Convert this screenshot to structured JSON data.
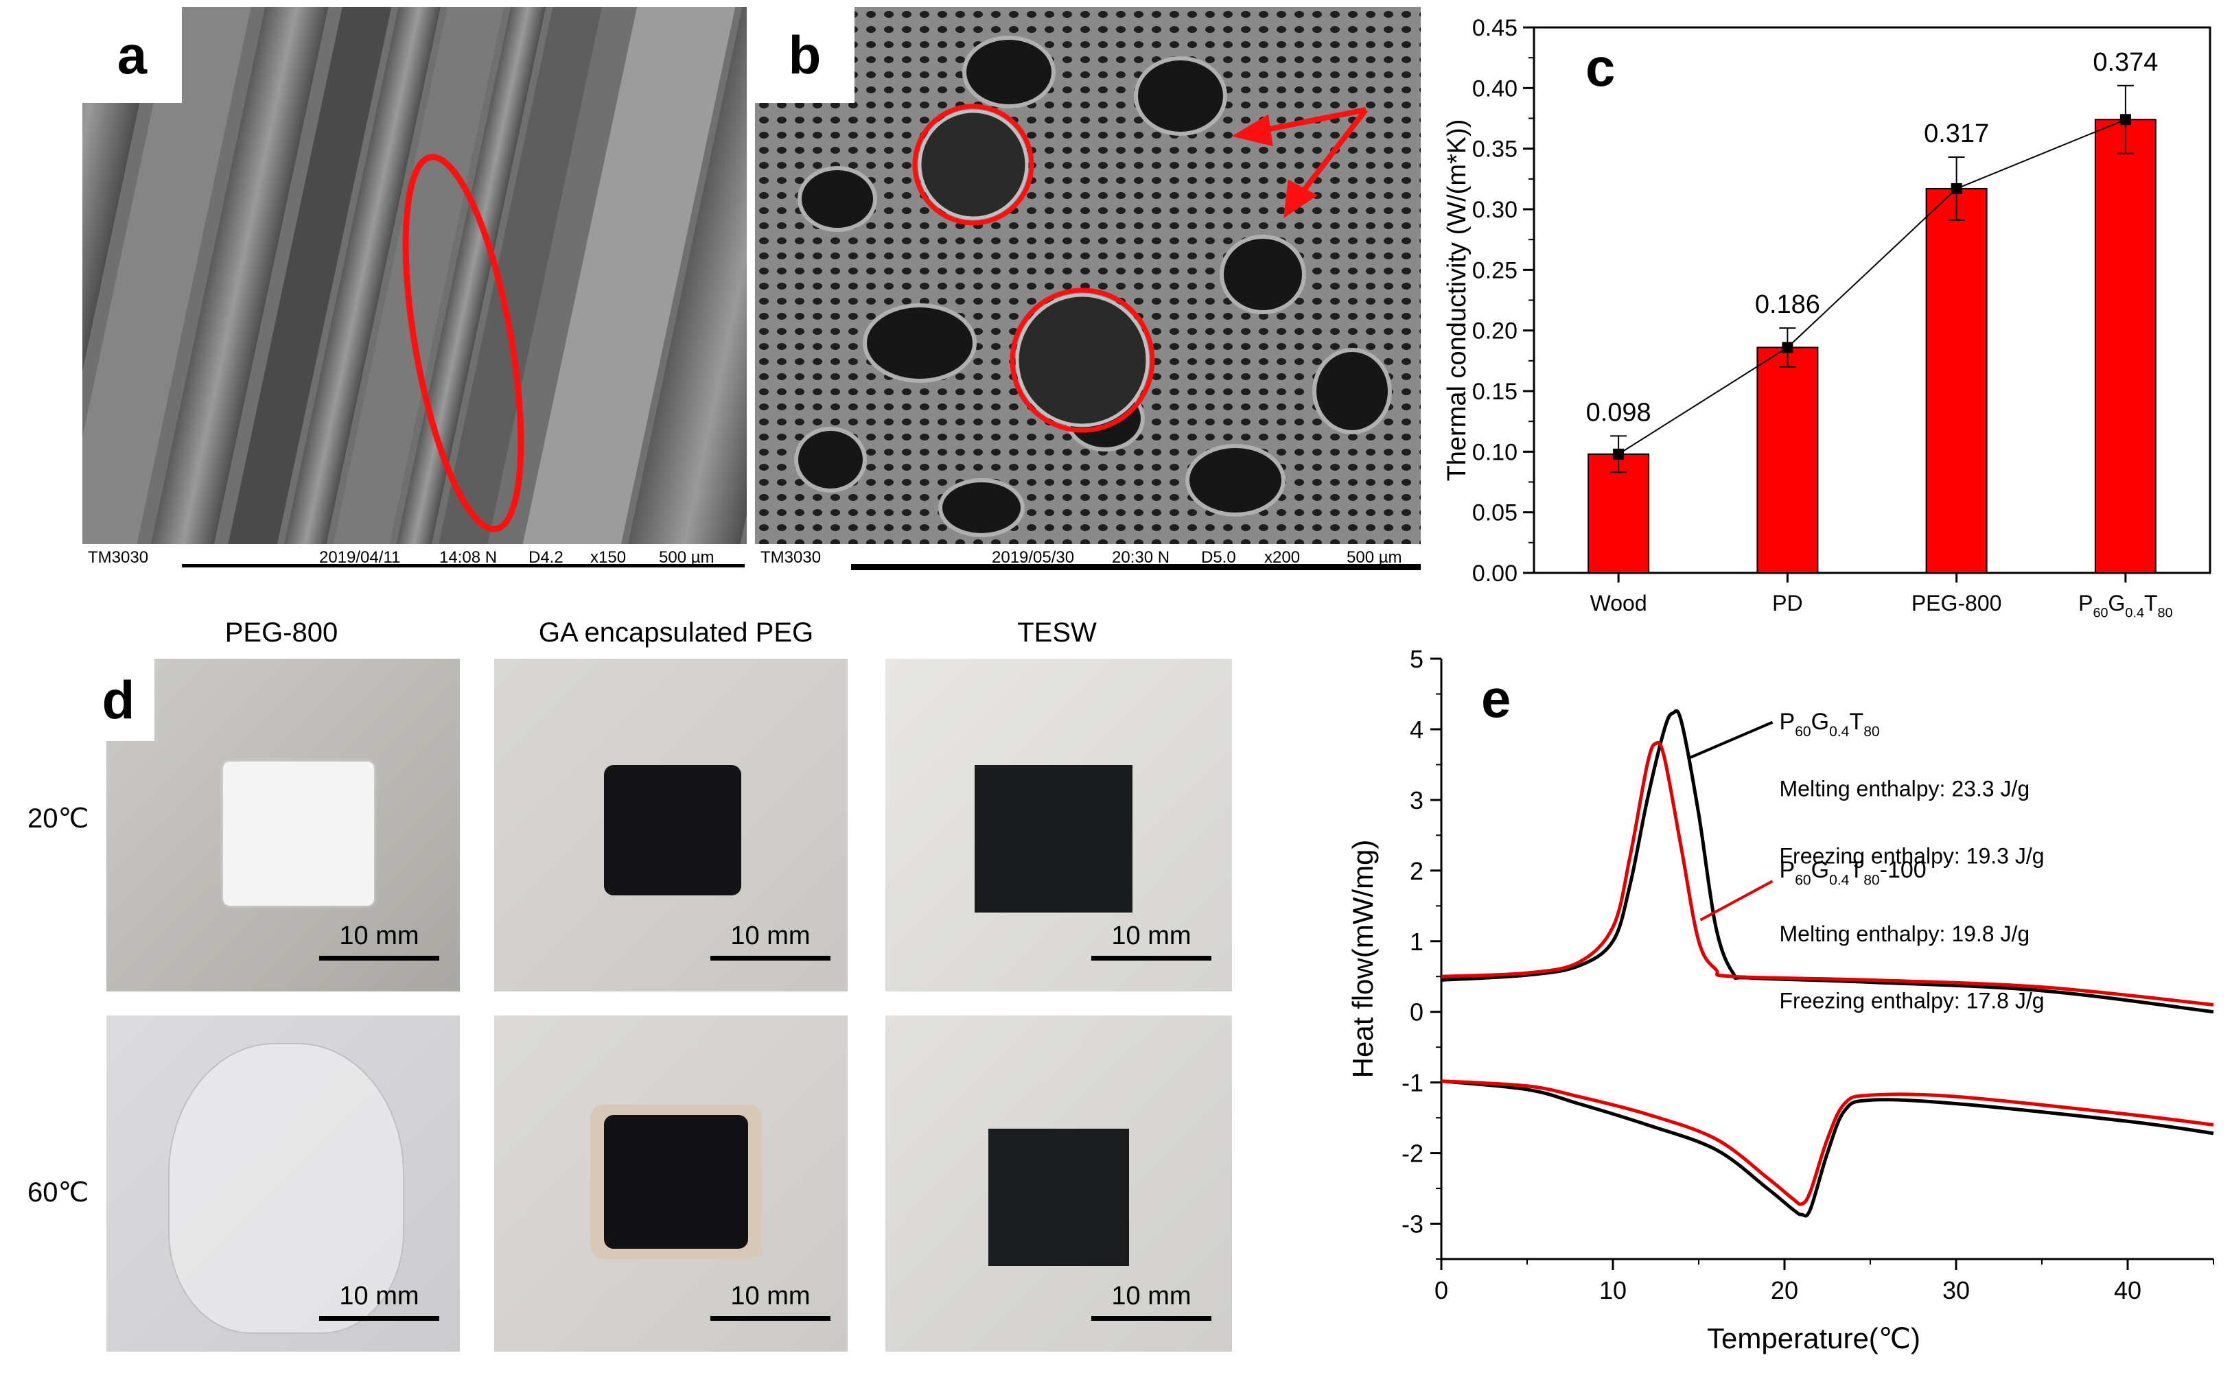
{
  "panels": {
    "a": {
      "letter": "a",
      "model": "TM3030",
      "date": "2019/04/11",
      "time": "14:08 N",
      "mode": "D4.2",
      "mag": "x150",
      "scale": "500 µm"
    },
    "b": {
      "letter": "b",
      "model": "TM3030",
      "date": "2019/05/30",
      "time": "20:30 N",
      "mode": "D5.0",
      "mag": "x200",
      "scale": "500 µm"
    },
    "c": {
      "letter": "c"
    },
    "d": {
      "letter": "d",
      "columns": [
        "PEG-800",
        "GA encapsulated PEG",
        "TESW"
      ],
      "rows": [
        "20℃",
        "60℃"
      ],
      "scale": "10 mm"
    },
    "e": {
      "letter": "e"
    }
  },
  "chart_data": [
    {
      "type": "bar",
      "panel": "c",
      "categories": [
        "Wood",
        "PD",
        "PEG-800",
        "P60G0.4T80"
      ],
      "values": [
        0.098,
        0.186,
        0.317,
        0.374
      ],
      "errors": [
        0.015,
        0.016,
        0.026,
        0.028
      ],
      "data_labels": [
        "0.098",
        "0.186",
        "0.317",
        "0.374"
      ],
      "ylabel": "Thermal conductivity (W/(m*K))",
      "xlabel": "",
      "ylim": [
        0,
        0.45
      ],
      "yticks": [
        "0.00",
        "0.05",
        "0.10",
        "0.15",
        "0.20",
        "0.25",
        "0.30",
        "0.35",
        "0.40",
        "0.45"
      ],
      "bar_color": "#ff0000",
      "line_overlay": true
    },
    {
      "type": "line",
      "panel": "e",
      "xlabel": "Temperature(℃)",
      "ylabel": "Heat flow(mW/mg)",
      "xlim": [
        0,
        45
      ],
      "ylim": [
        -3.5,
        5
      ],
      "xticks": [
        "0",
        "10",
        "20",
        "30",
        "40"
      ],
      "yticks": [
        "-3",
        "-2",
        "-1",
        "0",
        "1",
        "2",
        "3",
        "4",
        "5"
      ],
      "series": [
        {
          "name": "P60G0.4T80",
          "color": "#000000",
          "heating": [
            [
              0,
              0.45
            ],
            [
              5,
              0.52
            ],
            [
              8,
              0.65
            ],
            [
              10,
              1.0
            ],
            [
              11,
              1.8
            ],
            [
              12,
              3.0
            ],
            [
              13,
              4.0
            ],
            [
              13.5,
              4.23
            ],
            [
              14,
              4.1
            ],
            [
              15,
              2.8
            ],
            [
              16,
              1.2
            ],
            [
              17,
              0.55
            ],
            [
              18,
              0.48
            ],
            [
              25,
              0.42
            ],
            [
              35,
              0.3
            ],
            [
              45,
              0.0
            ]
          ],
          "cooling": [
            [
              0,
              -0.98
            ],
            [
              5,
              -1.1
            ],
            [
              8,
              -1.3
            ],
            [
              12,
              -1.6
            ],
            [
              16,
              -1.95
            ],
            [
              19,
              -2.5
            ],
            [
              20.5,
              -2.8
            ],
            [
              21,
              -2.87
            ],
            [
              21.5,
              -2.8
            ],
            [
              22.5,
              -2.0
            ],
            [
              23.5,
              -1.4
            ],
            [
              25,
              -1.25
            ],
            [
              30,
              -1.3
            ],
            [
              40,
              -1.55
            ],
            [
              45,
              -1.72
            ]
          ]
        },
        {
          "name": "P60G0.4T80-100",
          "color": "#e00000",
          "heating": [
            [
              0,
              0.5
            ],
            [
              5,
              0.55
            ],
            [
              8,
              0.7
            ],
            [
              10,
              1.2
            ],
            [
              11,
              2.2
            ],
            [
              12,
              3.5
            ],
            [
              12.5,
              3.8
            ],
            [
              13,
              3.6
            ],
            [
              14,
              2.3
            ],
            [
              15,
              1.0
            ],
            [
              16,
              0.6
            ],
            [
              17,
              0.5
            ],
            [
              25,
              0.45
            ],
            [
              35,
              0.35
            ],
            [
              45,
              0.1
            ]
          ],
          "cooling": [
            [
              0,
              -0.98
            ],
            [
              5,
              -1.05
            ],
            [
              8,
              -1.2
            ],
            [
              12,
              -1.45
            ],
            [
              16,
              -1.8
            ],
            [
              19,
              -2.35
            ],
            [
              20.5,
              -2.65
            ],
            [
              21,
              -2.72
            ],
            [
              21.5,
              -2.55
            ],
            [
              22.5,
              -1.8
            ],
            [
              23.5,
              -1.3
            ],
            [
              25,
              -1.18
            ],
            [
              30,
              -1.2
            ],
            [
              40,
              -1.45
            ],
            [
              45,
              -1.6
            ]
          ]
        }
      ],
      "annotations": [
        {
          "series": "P60G0.4T80",
          "melting": "Melting enthalpy: 23.3 J/g",
          "freezing": "Freezing enthalpy: 19.3 J/g"
        },
        {
          "series": "P60G0.4T80-100",
          "melting": "Melting enthalpy: 19.8 J/g",
          "freezing": "Freezing enthalpy: 17.8 J/g"
        }
      ]
    }
  ]
}
